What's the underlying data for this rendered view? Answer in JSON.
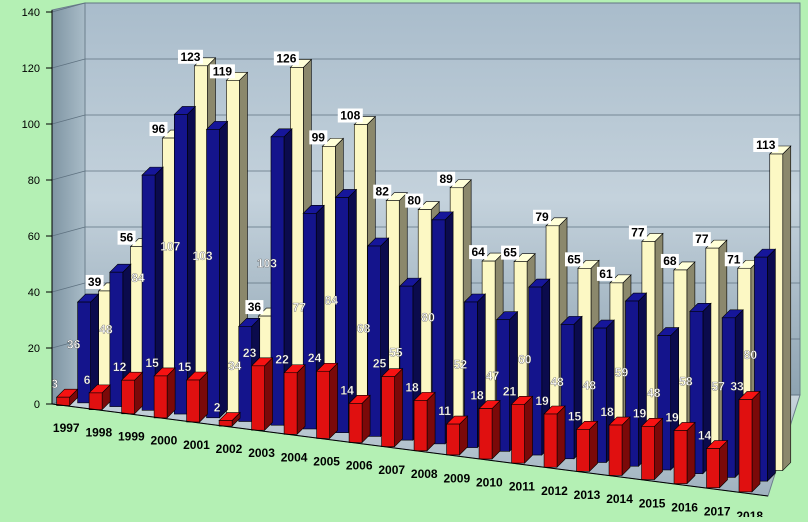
{
  "colors": {
    "background": "#b4f0b4",
    "red_series": "#e01010",
    "blue_series": "#14148c",
    "cream_series": "#fcf8c4",
    "wall_backdrop": "#9fb4c2"
  },
  "chart_data": {
    "type": "bar",
    "title": "",
    "xlabel": "",
    "ylabel": "",
    "ylim": [
      0,
      140
    ],
    "yticks": [
      0,
      20,
      40,
      60,
      80,
      100,
      120,
      140
    ],
    "grid": true,
    "three_d": true,
    "categories": [
      "1997",
      "1998",
      "1999",
      "2000",
      "2001",
      "2002",
      "2003",
      "2004",
      "2005",
      "2006",
      "2007",
      "2008",
      "2009",
      "2010",
      "2011",
      "2012",
      "2013",
      "2014",
      "2015",
      "2016",
      "2017",
      "2018"
    ],
    "series": [
      {
        "color": "#e01010",
        "values": [
          3,
          6,
          12,
          15,
          15,
          2,
          23,
          22,
          24,
          14,
          25,
          18,
          11,
          18,
          21,
          19,
          15,
          18,
          19,
          19,
          14,
          33
        ]
      },
      {
        "color": "#14148c",
        "values": [
          36,
          48,
          84,
          107,
          103,
          34,
          103,
          77,
          84,
          68,
          55,
          80,
          52,
          47,
          60,
          48,
          48,
          59,
          48,
          58,
          57,
          80
        ]
      },
      {
        "color": "#fcf8c4",
        "values": [
          39,
          56,
          96,
          123,
          119,
          36,
          126,
          99,
          108,
          82,
          80,
          89,
          64,
          65,
          79,
          65,
          61,
          77,
          68,
          77,
          71,
          113
        ]
      }
    ]
  }
}
